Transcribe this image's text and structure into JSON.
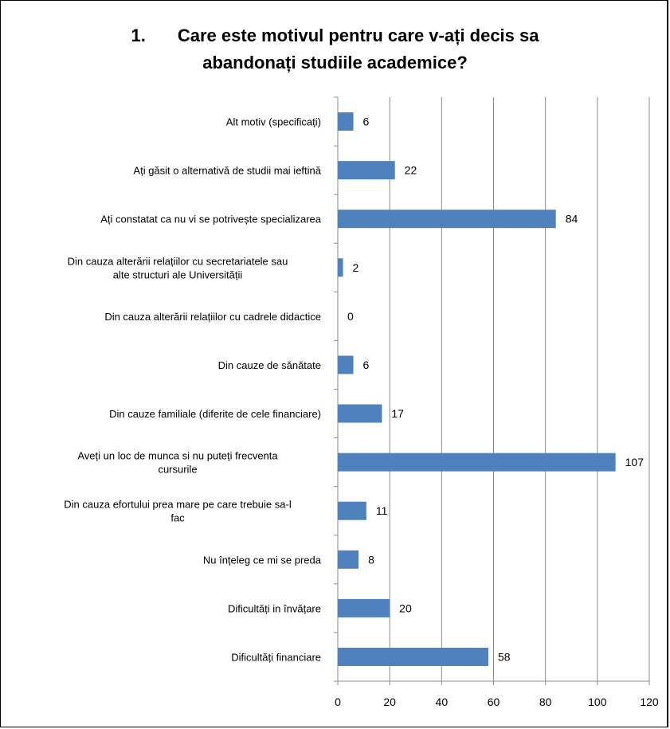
{
  "chart_data": {
    "type": "bar",
    "orientation": "horizontal",
    "title_number": "1.",
    "title_line1": "Care este motivul pentru care v-ați decis sa",
    "title_line2": "abandonați studiile academice?",
    "categories": [
      [
        "Alt motiv (specificați)"
      ],
      [
        "Ați găsit o alternativă de studii mai ieftină"
      ],
      [
        "Ați constatat ca nu vi se potrivește specializarea"
      ],
      [
        "Din cauza alterării relațiilor cu secretariatele sau",
        "alte structuri ale Universității"
      ],
      [
        "Din cauza alterării relațiilor cu cadrele didactice"
      ],
      [
        "Din cauze de sănătate"
      ],
      [
        "Din cauze familiale (diferite de cele financiare)"
      ],
      [
        "Aveți un loc de munca si nu puteți frecventa",
        "cursurile"
      ],
      [
        "Din cauza efortului prea mare pe care trebuie sa-l",
        "fac"
      ],
      [
        "Nu înțeleg ce mi se preda"
      ],
      [
        "Dificultăți in învățare"
      ],
      [
        "Dificultăți financiare"
      ]
    ],
    "values": [
      6,
      22,
      84,
      2,
      0,
      6,
      17,
      107,
      11,
      8,
      20,
      58
    ],
    "xlim": [
      0,
      120
    ],
    "xticks": [
      0,
      20,
      40,
      60,
      80,
      100,
      120
    ],
    "grid": "vertical",
    "legend": "none",
    "bar_color": "#4F81BD"
  }
}
